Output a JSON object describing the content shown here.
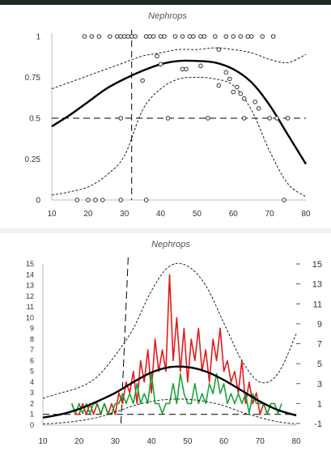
{
  "chart_data": [
    {
      "type": "scatter",
      "title": "Nephrops",
      "xlim": [
        10,
        80
      ],
      "ylim": [
        0,
        1
      ],
      "x_ticks": [
        "10",
        "20",
        "30",
        "40",
        "50",
        "60",
        "70",
        "80"
      ],
      "y_ticks": [
        "0",
        "0.25",
        "0.5",
        "0.75",
        "1"
      ],
      "grid": false,
      "points": [
        [
          19,
          1
        ],
        [
          21,
          1
        ],
        [
          23,
          1
        ],
        [
          26,
          1
        ],
        [
          28,
          1
        ],
        [
          29,
          1
        ],
        [
          30,
          1
        ],
        [
          31,
          1
        ],
        [
          32,
          1
        ],
        [
          33,
          1
        ],
        [
          36,
          1
        ],
        [
          37,
          1
        ],
        [
          38,
          1
        ],
        [
          40,
          1
        ],
        [
          41,
          1
        ],
        [
          44,
          1
        ],
        [
          46,
          1
        ],
        [
          48,
          1
        ],
        [
          49,
          1
        ],
        [
          51,
          1
        ],
        [
          52,
          1
        ],
        [
          55,
          1
        ],
        [
          58,
          1
        ],
        [
          60,
          1
        ],
        [
          62,
          1
        ],
        [
          64,
          1
        ],
        [
          65,
          1
        ],
        [
          68,
          1
        ],
        [
          71,
          1
        ],
        [
          39,
          0.88
        ],
        [
          35,
          0.73
        ],
        [
          40,
          0.83
        ],
        [
          56,
          0.92
        ],
        [
          46,
          0.8
        ],
        [
          47,
          0.8
        ],
        [
          51,
          0.82
        ],
        [
          58,
          0.78
        ],
        [
          59,
          0.74
        ],
        [
          56,
          0.7
        ],
        [
          61,
          0.69
        ],
        [
          60,
          0.66
        ],
        [
          62,
          0.65
        ],
        [
          63,
          0.62
        ],
        [
          66,
          0.6
        ],
        [
          67,
          0.56
        ],
        [
          29,
          0.5
        ],
        [
          42,
          0.5
        ],
        [
          53,
          0.5
        ],
        [
          63,
          0.5
        ],
        [
          70,
          0.5
        ],
        [
          72,
          0.5
        ],
        [
          75,
          0.5
        ],
        [
          17,
          0
        ],
        [
          20,
          0
        ],
        [
          22,
          0
        ],
        [
          24,
          0
        ],
        [
          29,
          0
        ],
        [
          36,
          0
        ],
        [
          74,
          0
        ]
      ],
      "series": [
        {
          "style": "solid-thick",
          "x": [
            10,
            15,
            20,
            25,
            30,
            35,
            40,
            45,
            50,
            55,
            60,
            65,
            70,
            75,
            80
          ],
          "y": [
            0.45,
            0.52,
            0.6,
            0.68,
            0.74,
            0.79,
            0.83,
            0.85,
            0.85,
            0.84,
            0.8,
            0.72,
            0.58,
            0.4,
            0.22
          ]
        },
        {
          "style": "dotted-upper",
          "x": [
            10,
            15,
            20,
            25,
            30,
            35,
            40,
            45,
            50,
            55,
            60,
            65,
            70,
            75,
            80
          ],
          "y": [
            0.68,
            0.72,
            0.76,
            0.8,
            0.84,
            0.88,
            0.9,
            0.92,
            0.92,
            0.93,
            0.92,
            0.9,
            0.86,
            0.84,
            0.89
          ]
        },
        {
          "style": "dotted-lower",
          "x": [
            10,
            15,
            20,
            25,
            30,
            35,
            40,
            45,
            50,
            55,
            60,
            65,
            70,
            75,
            80
          ],
          "y": [
            0.03,
            0.05,
            0.08,
            0.15,
            0.27,
            0.55,
            0.68,
            0.74,
            0.75,
            0.74,
            0.7,
            0.55,
            0.3,
            0.1,
            0.02
          ]
        }
      ],
      "reference_lines": [
        {
          "orientation": "horizontal",
          "value": 0.5,
          "style": "dashed"
        },
        {
          "orientation": "vertical",
          "value": 32,
          "style": "dashed"
        }
      ]
    },
    {
      "type": "line",
      "title": "Nephrops",
      "xlim": [
        10,
        80
      ],
      "left_ylim": [
        0,
        15
      ],
      "right_ylim": [
        -1,
        15
      ],
      "x_ticks": [
        "10",
        "20",
        "30",
        "40",
        "50",
        "60",
        "70",
        "80"
      ],
      "left_y_ticks": [
        "0",
        "1",
        "2",
        "3",
        "4",
        "5",
        "6",
        "7",
        "8",
        "9",
        "10",
        "11",
        "12",
        "13",
        "14",
        "15"
      ],
      "right_y_ticks": [
        "-1",
        "1",
        "3",
        "5",
        "7",
        "9",
        "11",
        "13",
        "15"
      ],
      "series": [
        {
          "axis": "left",
          "color": "#e21b1b",
          "x": [
            18,
            19,
            20,
            21,
            22,
            23,
            24,
            25,
            26,
            27,
            28,
            29,
            30,
            31,
            32,
            33,
            34,
            35,
            36,
            37,
            38,
            39,
            40,
            41,
            42,
            43,
            44,
            45,
            46,
            47,
            48,
            49,
            50,
            51,
            52,
            53,
            54,
            55,
            56,
            57,
            58,
            59,
            60,
            61,
            62,
            63,
            64,
            65,
            66,
            67,
            68,
            69,
            70,
            71,
            72,
            73
          ],
          "y": [
            2,
            1,
            1,
            2,
            1,
            2,
            1,
            2,
            1,
            2,
            1,
            2,
            1,
            3,
            2,
            4,
            3,
            5,
            2,
            6,
            4,
            7,
            3,
            8,
            5,
            7,
            5,
            14,
            6,
            10,
            5,
            9,
            4,
            8,
            6,
            9,
            5,
            7,
            4,
            8,
            6,
            9,
            5,
            6,
            4,
            5,
            3,
            6,
            2,
            4,
            2,
            3,
            1,
            2,
            1,
            2
          ]
        },
        {
          "axis": "right",
          "color": "#1aa33a",
          "x": [
            18,
            19,
            20,
            21,
            22,
            23,
            24,
            25,
            26,
            27,
            28,
            29,
            30,
            31,
            32,
            33,
            34,
            35,
            36,
            37,
            38,
            39,
            40,
            41,
            42,
            43,
            44,
            45,
            46,
            47,
            48,
            49,
            50,
            51,
            52,
            53,
            54,
            55,
            56,
            57,
            58,
            59,
            60,
            61,
            62,
            63,
            64,
            65,
            66,
            67,
            68,
            69,
            70,
            71,
            72,
            73,
            74,
            75,
            76
          ],
          "y": [
            1,
            0,
            1,
            0,
            1,
            0,
            1,
            1,
            0,
            1,
            0,
            0,
            1,
            1,
            2,
            1,
            2,
            1,
            3,
            1,
            2,
            1,
            4,
            1,
            1,
            0,
            1,
            1,
            3,
            1,
            4,
            2,
            1,
            1,
            3,
            1,
            2,
            1,
            3,
            2,
            4,
            2,
            3,
            1,
            2,
            1,
            2,
            1,
            2,
            0,
            2,
            1,
            1,
            1,
            0,
            1,
            1,
            0,
            1
          ]
        },
        {
          "axis": "left",
          "style": "solid-thick",
          "color": "#000000",
          "x": [
            10,
            15,
            20,
            25,
            30,
            35,
            40,
            45,
            50,
            55,
            60,
            65,
            70,
            75,
            80
          ],
          "y": [
            0.7,
            1,
            1.5,
            2.2,
            3,
            4,
            4.9,
            5.4,
            5.4,
            5,
            4.2,
            3.2,
            2.2,
            1.4,
            0.9
          ]
        },
        {
          "axis": "left",
          "style": "dotted-upper",
          "color": "#000000",
          "x": [
            10,
            15,
            20,
            25,
            30,
            35,
            40,
            45,
            50,
            55,
            60,
            65,
            70,
            75,
            80
          ],
          "y": [
            2.5,
            3,
            3.5,
            4.5,
            6.5,
            9,
            12.5,
            14.8,
            14.8,
            13,
            9.5,
            6,
            4,
            4.8,
            8.5
          ]
        },
        {
          "axis": "left",
          "style": "dotted-lower",
          "color": "#000000",
          "x": [
            10,
            15,
            20,
            25,
            30,
            35,
            40,
            45,
            50,
            55,
            60,
            65,
            70,
            75,
            80
          ],
          "y": [
            0.1,
            0.2,
            0.4,
            0.7,
            1.2,
            1.8,
            2.2,
            2.4,
            2.4,
            2.2,
            1.8,
            1.2,
            0.7,
            0.3,
            0.1
          ]
        }
      ],
      "reference_lines": [
        {
          "orientation": "horizontal",
          "value": 1,
          "style": "dashed"
        },
        {
          "orientation": "vertical",
          "value": 32,
          "style": "dashed"
        }
      ]
    }
  ]
}
